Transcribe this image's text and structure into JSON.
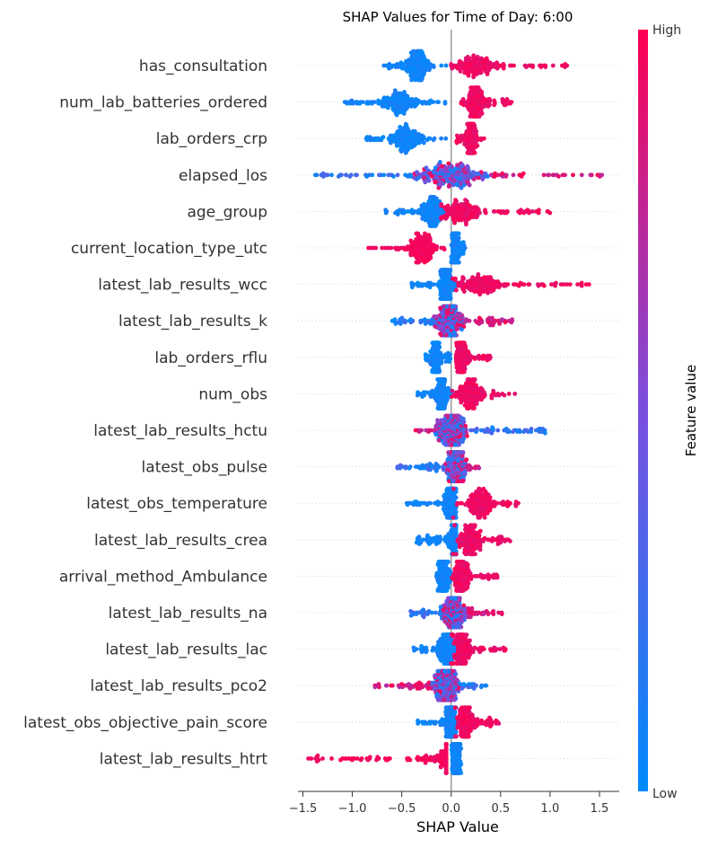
{
  "chart_data": {
    "type": "scatter",
    "subtype": "shap-beeswarm",
    "title": "SHAP Values for Time of Day: 6:00",
    "xlabel": "SHAP Value",
    "xlim": [
      -1.55,
      1.7
    ],
    "xticks": [
      -1.5,
      -1.0,
      -0.5,
      0.0,
      0.5,
      1.0,
      1.5
    ],
    "xtick_labels": [
      "−1.5",
      "−1.0",
      "−0.5",
      "0.0",
      "0.5",
      "1.0",
      "1.5"
    ],
    "colorbar": {
      "label": "Feature value",
      "high_label": "High",
      "low_label": "Low",
      "low_color": "#008bfb",
      "high_color": "#ff0052"
    },
    "features": [
      {
        "name": "has_consultation",
        "pattern": "split",
        "negative": [
          -0.7,
          -0.05
        ],
        "positive": [
          0.0,
          1.22
        ],
        "neg_core": -0.35,
        "pos_core": 0.25
      },
      {
        "name": "num_lab_batteries_ordered",
        "pattern": "split",
        "negative": [
          -1.08,
          -0.05
        ],
        "positive": [
          0.1,
          0.63
        ],
        "neg_core": -0.55,
        "pos_core": 0.25
      },
      {
        "name": "lab_orders_crp",
        "pattern": "split",
        "negative": [
          -0.87,
          -0.05
        ],
        "positive": [
          0.05,
          0.35
        ],
        "neg_core": -0.45,
        "pos_core": 0.2
      },
      {
        "name": "elapsed_los",
        "pattern": "mixed",
        "range": [
          -1.45,
          1.55
        ],
        "core": 0.0
      },
      {
        "name": "age_group",
        "pattern": "split",
        "negative": [
          -0.7,
          -0.05
        ],
        "positive": [
          -0.1,
          1.0
        ],
        "neg_core": -0.2,
        "pos_core": 0.1
      },
      {
        "name": "current_location_type_utc",
        "pattern": "split-reverse",
        "negative": [
          -0.85,
          -0.05
        ],
        "positive": [
          0.0,
          0.15
        ],
        "neg_core": -0.3,
        "pos_core": 0.05
      },
      {
        "name": "latest_lab_results_wcc",
        "pattern": "split",
        "negative": [
          -0.4,
          0.05
        ],
        "positive": [
          0.0,
          1.45
        ],
        "neg_core": -0.05,
        "pos_core": 0.3
      },
      {
        "name": "latest_lab_results_k",
        "pattern": "mixed",
        "range": [
          -0.6,
          0.63
        ],
        "core": -0.02
      },
      {
        "name": "lab_orders_rflu",
        "pattern": "split",
        "negative": [
          -0.27,
          0.0
        ],
        "positive": [
          0.05,
          0.4
        ],
        "neg_core": -0.15,
        "pos_core": 0.1
      },
      {
        "name": "num_obs",
        "pattern": "split",
        "negative": [
          -0.35,
          0.05
        ],
        "positive": [
          0.0,
          0.65
        ],
        "neg_core": -0.1,
        "pos_core": 0.2
      },
      {
        "name": "latest_lab_results_hctu",
        "pattern": "mixed-reverse",
        "range": [
          -0.4,
          0.95
        ],
        "core": 0.0
      },
      {
        "name": "latest_obs_pulse",
        "pattern": "mixed",
        "range": [
          -0.55,
          0.3
        ],
        "core": 0.05
      },
      {
        "name": "latest_obs_temperature",
        "pattern": "split",
        "negative": [
          -0.45,
          0.05
        ],
        "positive": [
          0.0,
          0.72
        ],
        "neg_core": 0.0,
        "pos_core": 0.3
      },
      {
        "name": "latest_lab_results_crea",
        "pattern": "split",
        "negative": [
          -0.35,
          0.05
        ],
        "positive": [
          0.0,
          0.6
        ],
        "neg_core": 0.05,
        "pos_core": 0.2
      },
      {
        "name": "arrival_method_Ambulance",
        "pattern": "split",
        "negative": [
          -0.15,
          0.0
        ],
        "positive": [
          0.0,
          0.48
        ],
        "neg_core": -0.08,
        "pos_core": 0.1
      },
      {
        "name": "latest_lab_results_na",
        "pattern": "mixed",
        "range": [
          -0.42,
          0.52
        ],
        "core": 0.03
      },
      {
        "name": "latest_lab_results_lac",
        "pattern": "split",
        "negative": [
          -0.4,
          0.05
        ],
        "positive": [
          0.0,
          0.55
        ],
        "neg_core": -0.05,
        "pos_core": 0.1
      },
      {
        "name": "latest_lab_results_pco2",
        "pattern": "mixed-reverse",
        "range": [
          -0.78,
          0.38
        ],
        "core": -0.05
      },
      {
        "name": "latest_obs_objective_pain_score",
        "pattern": "split",
        "negative": [
          -0.35,
          0.05
        ],
        "positive": [
          0.0,
          0.5
        ],
        "neg_core": 0.0,
        "pos_core": 0.15
      },
      {
        "name": "latest_lab_results_htrt",
        "pattern": "split-reverse",
        "negative": [
          -1.45,
          -0.05
        ],
        "positive": [
          0.0,
          0.1
        ],
        "neg_core": 0.0,
        "pos_core": 0.05
      }
    ]
  }
}
